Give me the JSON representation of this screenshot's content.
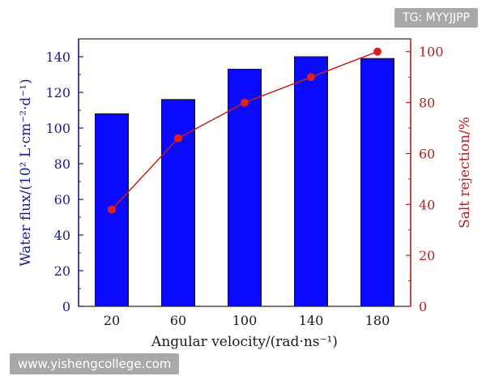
{
  "chart_data": {
    "type": "bar",
    "categories": [
      "20",
      "60",
      "100",
      "140",
      "180"
    ],
    "series": [
      {
        "values": [
          108,
          116,
          133,
          140,
          139
        ],
        "axis": "left",
        "kind": "bar",
        "color": "#0a0aff"
      },
      {
        "values": [
          38,
          66,
          80,
          90,
          100
        ],
        "axis": "right",
        "kind": "line",
        "color": "#c81e1e"
      }
    ],
    "xlabel": "Angular velocity/(rad·ns⁻¹)",
    "ylabel": "Water flux/(10² L·cm⁻²·d⁻¹)",
    "ylabel_right": "Salt rejection/%",
    "ylim": [
      0,
      150
    ],
    "yticks": [
      0,
      20,
      40,
      60,
      80,
      100,
      120,
      140
    ],
    "ylim_right": [
      0,
      105
    ],
    "yticks_right": [
      0,
      20,
      40,
      60,
      80,
      100
    ],
    "left_axis_color": "#1a1a8c",
    "right_axis_color": "#b41e1e",
    "grid": false,
    "legend": "none"
  },
  "watermarks": {
    "top": "TG: MYYJJPP",
    "bottom": "www.yishengcollege.com"
  }
}
